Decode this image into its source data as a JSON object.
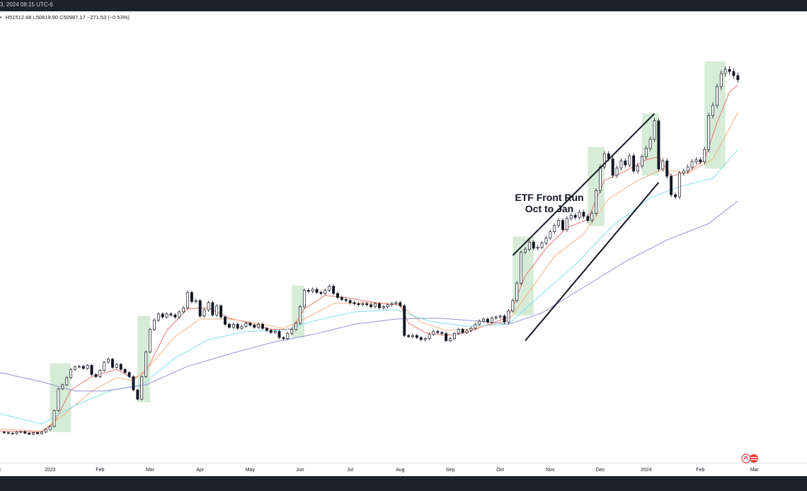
{
  "header": {
    "title": "3, 2024 08:15 UTC-6",
    "ohlc_arrow": "•",
    "high": "H51512.68",
    "low": "L50819.90",
    "close": "C50987.17",
    "change": "−271.53 (−0.53%)"
  },
  "annotation": {
    "line1": "ETF Front Run",
    "line2": "Oct to Jan"
  },
  "colors": {
    "up_candle": "#ffffff",
    "down_candle": "#131722",
    "wick": "#131722",
    "highlight": "#c8e6c9",
    "ema_fast": "#e57373",
    "ema_mid": "#f4b183",
    "ema_slow": "#80deea",
    "ema_long": "#9b8fd6",
    "channel": "#131722"
  },
  "chart_data": {
    "type": "line",
    "title": "",
    "xlabel": "",
    "ylabel": "",
    "x_tick_labels": [
      "c",
      "2023",
      "Feb",
      "Mar",
      "Apr",
      "May",
      "Jun",
      "Jul",
      "Aug",
      "Sep",
      "Oct",
      "Nov",
      "Dec",
      "2024",
      "Feb",
      "Mar"
    ],
    "ylim": [
      14000,
      56000
    ],
    "grid": false,
    "legend": "none",
    "series": [
      {
        "name": "",
        "role": "price",
        "points": [
          [
            0,
            16700
          ],
          [
            2,
            16650
          ],
          [
            4,
            16600
          ],
          [
            6,
            16550
          ],
          [
            8,
            16700
          ],
          [
            10,
            16750
          ],
          [
            12,
            16600
          ],
          [
            14,
            16500
          ],
          [
            16,
            16650
          ],
          [
            18,
            16550
          ],
          [
            20,
            16700
          ],
          [
            22,
            16950
          ],
          [
            24,
            17250
          ],
          [
            26,
            18800
          ],
          [
            28,
            20900
          ],
          [
            30,
            21300
          ],
          [
            32,
            22000
          ],
          [
            34,
            22800
          ],
          [
            36,
            23050
          ],
          [
            38,
            23100
          ],
          [
            40,
            22900
          ],
          [
            42,
            23200
          ],
          [
            44,
            22300
          ],
          [
            46,
            22100
          ],
          [
            48,
            22700
          ],
          [
            50,
            23500
          ],
          [
            52,
            23800
          ],
          [
            54,
            23000
          ],
          [
            56,
            23300
          ],
          [
            58,
            22800
          ],
          [
            60,
            22500
          ],
          [
            62,
            22100
          ],
          [
            64,
            20800
          ],
          [
            66,
            19900
          ],
          [
            68,
            22100
          ],
          [
            70,
            24500
          ],
          [
            72,
            26700
          ],
          [
            74,
            27600
          ],
          [
            76,
            28200
          ],
          [
            78,
            27900
          ],
          [
            80,
            28200
          ],
          [
            82,
            28100
          ],
          [
            84,
            27900
          ],
          [
            86,
            28400
          ],
          [
            88,
            28800
          ],
          [
            90,
            30300
          ],
          [
            92,
            29400
          ],
          [
            94,
            29500
          ],
          [
            96,
            28000
          ],
          [
            98,
            28600
          ],
          [
            100,
            29300
          ],
          [
            102,
            28100
          ],
          [
            104,
            29000
          ],
          [
            106,
            27900
          ],
          [
            108,
            27200
          ],
          [
            110,
            26900
          ],
          [
            112,
            27200
          ],
          [
            114,
            26800
          ],
          [
            116,
            27000
          ],
          [
            118,
            27300
          ],
          [
            120,
            27100
          ],
          [
            122,
            26900
          ],
          [
            124,
            27200
          ],
          [
            126,
            26800
          ],
          [
            128,
            26600
          ],
          [
            130,
            26400
          ],
          [
            132,
            26500
          ],
          [
            134,
            25900
          ],
          [
            136,
            25800
          ],
          [
            138,
            26300
          ],
          [
            140,
            26700
          ],
          [
            142,
            27300
          ],
          [
            144,
            28900
          ],
          [
            146,
            30500
          ],
          [
            148,
            30400
          ],
          [
            150,
            30600
          ],
          [
            152,
            30300
          ],
          [
            154,
            30200
          ],
          [
            156,
            30500
          ],
          [
            158,
            30900
          ],
          [
            160,
            30200
          ],
          [
            162,
            29800
          ],
          [
            164,
            29600
          ],
          [
            166,
            29500
          ],
          [
            168,
            29300
          ],
          [
            170,
            29200
          ],
          [
            172,
            29100
          ],
          [
            174,
            29200
          ],
          [
            176,
            29100
          ],
          [
            178,
            28900
          ],
          [
            180,
            29200
          ],
          [
            182,
            28800
          ],
          [
            184,
            28900
          ],
          [
            186,
            29100
          ],
          [
            188,
            29200
          ],
          [
            190,
            29300
          ],
          [
            192,
            29000
          ],
          [
            194,
            26100
          ],
          [
            196,
            26000
          ],
          [
            198,
            26100
          ],
          [
            200,
            25900
          ],
          [
            202,
            25700
          ],
          [
            204,
            25800
          ],
          [
            206,
            26200
          ],
          [
            208,
            26500
          ],
          [
            210,
            26400
          ],
          [
            212,
            26300
          ],
          [
            214,
            25600
          ],
          [
            216,
            25800
          ],
          [
            218,
            26300
          ],
          [
            220,
            26700
          ],
          [
            222,
            26400
          ],
          [
            224,
            26600
          ],
          [
            226,
            26800
          ],
          [
            228,
            27200
          ],
          [
            230,
            27500
          ],
          [
            232,
            27700
          ],
          [
            234,
            27400
          ],
          [
            236,
            27800
          ],
          [
            238,
            27900
          ],
          [
            240,
            28000
          ],
          [
            242,
            27400
          ],
          [
            244,
            28500
          ],
          [
            246,
            29500
          ],
          [
            248,
            31200
          ],
          [
            250,
            34200
          ],
          [
            252,
            34500
          ],
          [
            254,
            35200
          ],
          [
            256,
            34600
          ],
          [
            258,
            34700
          ],
          [
            260,
            35100
          ],
          [
            262,
            35600
          ],
          [
            264,
            36200
          ],
          [
            266,
            36800
          ],
          [
            268,
            37300
          ],
          [
            270,
            36400
          ],
          [
            272,
            37500
          ],
          [
            274,
            37800
          ],
          [
            276,
            37600
          ],
          [
            278,
            38100
          ],
          [
            280,
            37700
          ],
          [
            282,
            37300
          ],
          [
            284,
            38000
          ],
          [
            286,
            40200
          ],
          [
            288,
            42500
          ],
          [
            290,
            43800
          ],
          [
            292,
            43300
          ],
          [
            294,
            41700
          ],
          [
            296,
            42400
          ],
          [
            298,
            43100
          ],
          [
            300,
            42700
          ],
          [
            302,
            43600
          ],
          [
            304,
            42100
          ],
          [
            306,
            42600
          ],
          [
            308,
            43500
          ],
          [
            310,
            44300
          ],
          [
            312,
            45200
          ],
          [
            314,
            47000
          ],
          [
            316,
            42300
          ],
          [
            318,
            43100
          ],
          [
            320,
            41600
          ],
          [
            322,
            39800
          ],
          [
            324,
            39600
          ],
          [
            326,
            41900
          ],
          [
            328,
            42100
          ],
          [
            330,
            42500
          ],
          [
            332,
            43000
          ],
          [
            334,
            43200
          ],
          [
            336,
            43000
          ],
          [
            338,
            44200
          ],
          [
            340,
            47500
          ],
          [
            342,
            48500
          ],
          [
            344,
            50300
          ],
          [
            346,
            51600
          ],
          [
            348,
            52000
          ],
          [
            350,
            51800
          ],
          [
            352,
            51400
          ],
          [
            354,
            50987
          ]
        ]
      },
      {
        "name": "",
        "role": "ema_fast",
        "points": [
          [
            0,
            16800
          ],
          [
            20,
            16700
          ],
          [
            26,
            17600
          ],
          [
            34,
            20800
          ],
          [
            44,
            22100
          ],
          [
            56,
            22800
          ],
          [
            64,
            21900
          ],
          [
            70,
            22600
          ],
          [
            80,
            26600
          ],
          [
            90,
            28700
          ],
          [
            100,
            28800
          ],
          [
            110,
            27800
          ],
          [
            120,
            27300
          ],
          [
            130,
            26700
          ],
          [
            140,
            26700
          ],
          [
            146,
            28700
          ],
          [
            156,
            30000
          ],
          [
            166,
            29800
          ],
          [
            180,
            29300
          ],
          [
            192,
            29100
          ],
          [
            196,
            27300
          ],
          [
            204,
            26400
          ],
          [
            214,
            26100
          ],
          [
            224,
            26400
          ],
          [
            236,
            27300
          ],
          [
            244,
            27900
          ],
          [
            252,
            31900
          ],
          [
            262,
            34600
          ],
          [
            272,
            36600
          ],
          [
            282,
            37400
          ],
          [
            290,
            41200
          ],
          [
            300,
            42100
          ],
          [
            310,
            43200
          ],
          [
            316,
            43500
          ],
          [
            322,
            41600
          ],
          [
            330,
            42000
          ],
          [
            338,
            43200
          ],
          [
            344,
            46800
          ],
          [
            350,
            49800
          ],
          [
            354,
            50500
          ]
        ]
      },
      {
        "name": "",
        "role": "ema_mid",
        "points": [
          [
            0,
            17000
          ],
          [
            20,
            16800
          ],
          [
            30,
            18300
          ],
          [
            44,
            20700
          ],
          [
            56,
            22000
          ],
          [
            64,
            21700
          ],
          [
            72,
            23200
          ],
          [
            84,
            26000
          ],
          [
            96,
            27700
          ],
          [
            110,
            27700
          ],
          [
            124,
            27300
          ],
          [
            136,
            26800
          ],
          [
            146,
            27700
          ],
          [
            160,
            29200
          ],
          [
            176,
            29300
          ],
          [
            192,
            29100
          ],
          [
            202,
            27400
          ],
          [
            214,
            26600
          ],
          [
            228,
            26800
          ],
          [
            244,
            27600
          ],
          [
            254,
            30400
          ],
          [
            266,
            33800
          ],
          [
            280,
            36000
          ],
          [
            292,
            39400
          ],
          [
            306,
            41200
          ],
          [
            318,
            42300
          ],
          [
            330,
            41900
          ],
          [
            342,
            43300
          ],
          [
            354,
            47800
          ]
        ]
      },
      {
        "name": "",
        "role": "ema_slow",
        "points": [
          [
            0,
            18500
          ],
          [
            20,
            17500
          ],
          [
            36,
            19300
          ],
          [
            54,
            20800
          ],
          [
            68,
            21300
          ],
          [
            84,
            23900
          ],
          [
            100,
            25700
          ],
          [
            118,
            26500
          ],
          [
            136,
            26600
          ],
          [
            152,
            27600
          ],
          [
            170,
            28400
          ],
          [
            190,
            28600
          ],
          [
            206,
            27500
          ],
          [
            224,
            27000
          ],
          [
            244,
            27200
          ],
          [
            258,
            29800
          ],
          [
            276,
            33000
          ],
          [
            294,
            36800
          ],
          [
            312,
            39500
          ],
          [
            326,
            40600
          ],
          [
            342,
            41400
          ],
          [
            354,
            44200
          ]
        ]
      },
      {
        "name": "",
        "role": "ema_long",
        "points": [
          [
            0,
            22500
          ],
          [
            20,
            21600
          ],
          [
            36,
            20700
          ],
          [
            50,
            20700
          ],
          [
            70,
            21300
          ],
          [
            90,
            23100
          ],
          [
            110,
            24300
          ],
          [
            130,
            25400
          ],
          [
            150,
            26200
          ],
          [
            170,
            27200
          ],
          [
            190,
            27700
          ],
          [
            210,
            27800
          ],
          [
            230,
            27500
          ],
          [
            244,
            27200
          ],
          [
            260,
            28300
          ],
          [
            280,
            30800
          ],
          [
            300,
            33300
          ],
          [
            320,
            35400
          ],
          [
            340,
            37000
          ],
          [
            354,
            39200
          ]
        ]
      }
    ],
    "highlight_regions": [
      [
        24,
        34
      ],
      [
        66,
        72
      ],
      [
        140,
        146
      ],
      [
        246,
        256
      ],
      [
        282,
        290
      ],
      [
        308,
        316
      ],
      [
        338,
        348
      ]
    ],
    "channel_lines": [
      {
        "from": [
          246,
          33900
        ],
        "to": [
          314,
          47700
        ]
      },
      {
        "from": [
          252,
          25600
        ],
        "to": [
          316,
          41000
        ]
      }
    ]
  }
}
